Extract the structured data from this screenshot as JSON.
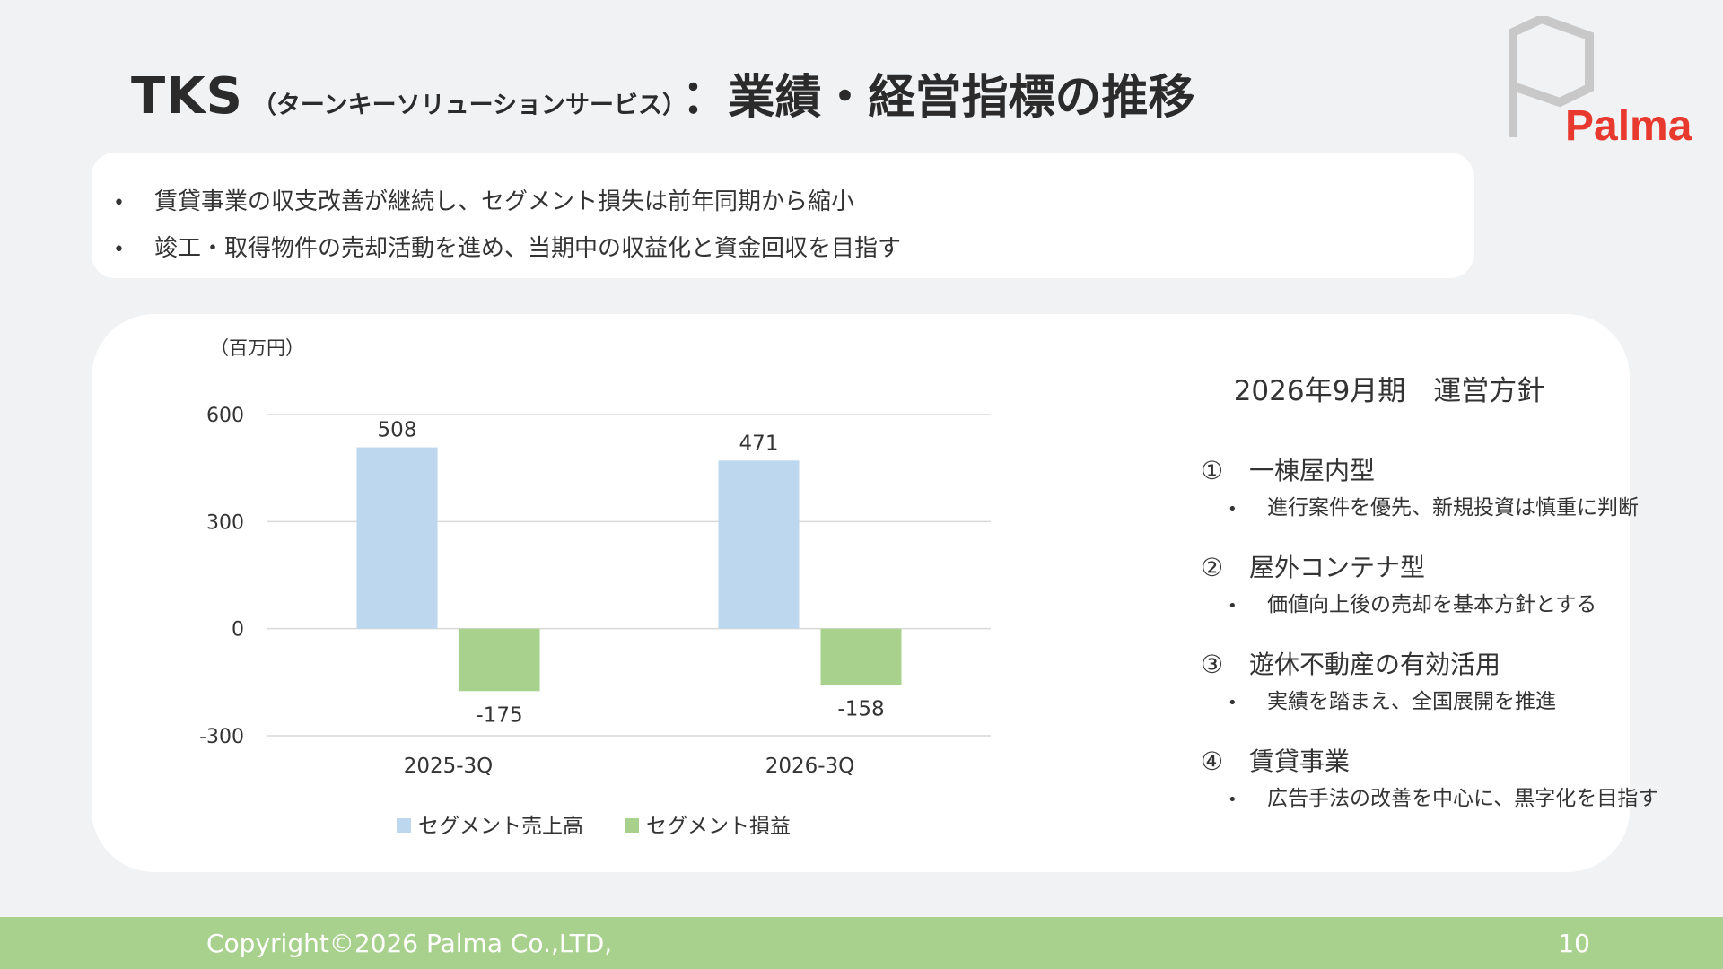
{
  "header": {
    "title_main": "TKS",
    "title_sub": "（ターンキーソリューションサービス）",
    "title_tail": "：業績・経営指標の推移",
    "logo_text": "Palma"
  },
  "summary": {
    "bullets": [
      "賃貸事業の収支改善が継続し、セグメント損失は前年同期から縮小",
      "竣工・取得物件の売却活動を進め、当期中の収益化と資金回収を目指す"
    ]
  },
  "chart_data": {
    "type": "bar",
    "unit_label": "（百万円）",
    "categories": [
      "2025-3Q",
      "2026-3Q"
    ],
    "series": [
      {
        "name": "セグメント売上高",
        "values": [
          508,
          471
        ],
        "color": "#bdd7ee"
      },
      {
        "name": "セグメント損益",
        "values": [
          -175,
          -158
        ],
        "color": "#a9d18e"
      }
    ],
    "yticks": [
      600,
      300,
      0,
      -300
    ],
    "ylim": [
      -300,
      600
    ],
    "grid": true,
    "legend": "bottom"
  },
  "policy": {
    "title": "2026年9月期　運営方針",
    "items": [
      {
        "num": "①",
        "heading": "一棟屋内型",
        "detail": "進行案件を優先、新規投資は慎重に判断"
      },
      {
        "num": "②",
        "heading": "屋外コンテナ型",
        "detail": "価値向上後の売却を基本方針とする"
      },
      {
        "num": "③",
        "heading": "遊休不動産の有効活用",
        "detail": "実績を踏まえ、全国展開を推進"
      },
      {
        "num": "④",
        "heading": "賃貸事業",
        "detail": "広告手法の改善を中心に、黒字化を目指す"
      }
    ]
  },
  "footer": {
    "copyright": "Copyright©2026 Palma Co.,LTD,",
    "page": "10"
  },
  "colors": {
    "accent_red": "#e8392e",
    "footer_green": "#a9d18e",
    "logo_gray": "#c8c8c8"
  }
}
